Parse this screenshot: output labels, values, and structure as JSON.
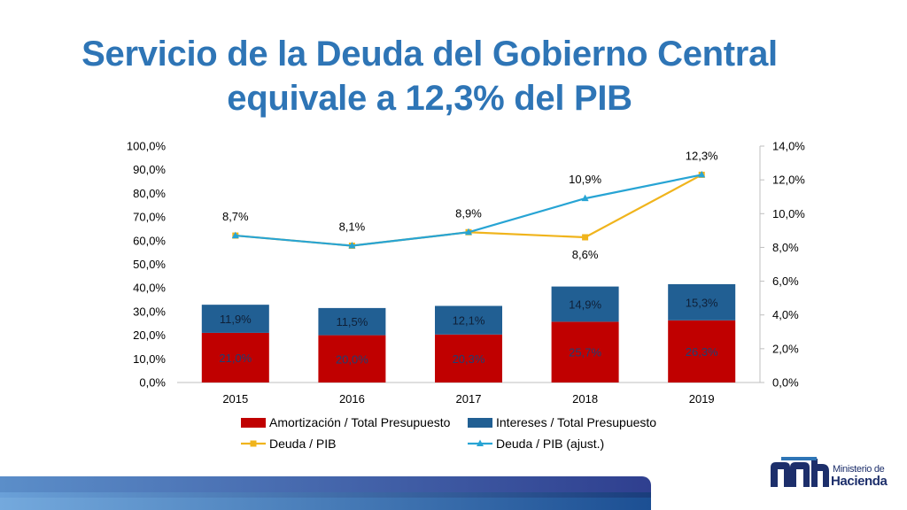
{
  "title": {
    "line1": "Servicio de la Deuda del Gobierno Central",
    "line2": "equivale a 12,3% del PIB"
  },
  "chart_data": {
    "type": "bar",
    "stacked": true,
    "categories": [
      "2015",
      "2016",
      "2017",
      "2018",
      "2019"
    ],
    "series": [
      {
        "name": "Amortización / Total Presupuesto",
        "kind": "bar",
        "axis": "left",
        "color": "#c00000",
        "values": [
          21.0,
          20.0,
          20.3,
          25.7,
          26.3
        ],
        "labels": [
          "21,0%",
          "20,0%",
          "20,3%",
          "25,7%",
          "26,3%"
        ]
      },
      {
        "name": "Intereses / Total Presupuesto",
        "kind": "bar",
        "axis": "left",
        "color": "#215f93",
        "values": [
          11.9,
          11.5,
          12.1,
          14.9,
          15.3
        ],
        "labels": [
          "11,9%",
          "11,5%",
          "12,1%",
          "14,9%",
          "15,3%"
        ]
      },
      {
        "name": "Deuda / PIB",
        "kind": "line",
        "axis": "right",
        "color": "#f0b41c",
        "values": [
          8.7,
          8.1,
          8.9,
          8.6,
          12.3
        ],
        "labels": [
          "",
          "",
          "",
          "8,6%",
          ""
        ]
      },
      {
        "name": "Deuda / PIB (ajust.)",
        "kind": "line",
        "axis": "right",
        "color": "#27a4d4",
        "values": [
          8.7,
          8.1,
          8.9,
          10.9,
          12.3
        ],
        "labels": [
          "8,7%",
          "8,1%",
          "8,9%",
          "10,9%",
          "12,3%"
        ]
      }
    ],
    "y_left": {
      "min": 0,
      "max": 100,
      "step": 10,
      "ticks": [
        "0,0%",
        "10,0%",
        "20,0%",
        "30,0%",
        "40,0%",
        "50,0%",
        "60,0%",
        "70,0%",
        "80,0%",
        "90,0%",
        "100,0%"
      ]
    },
    "y_right": {
      "min": 0,
      "max": 14,
      "step": 2,
      "ticks": [
        "0,0%",
        "2,0%",
        "4,0%",
        "6,0%",
        "8,0%",
        "10,0%",
        "12,0%",
        "14,0%"
      ]
    },
    "legend": [
      "Amortización / Total Presupuesto",
      "Intereses / Total Presupuesto",
      "Deuda / PIB",
      "Deuda / PIB (ajust.)"
    ],
    "legend_position": "bottom",
    "grid": false
  },
  "branding": {
    "logo_icon": "mh-logo-icon",
    "logo_line1": "Ministerio de",
    "logo_line2": "Hacienda",
    "colors": {
      "title": "#2e75b6",
      "brand": "#1d2f6b"
    }
  }
}
